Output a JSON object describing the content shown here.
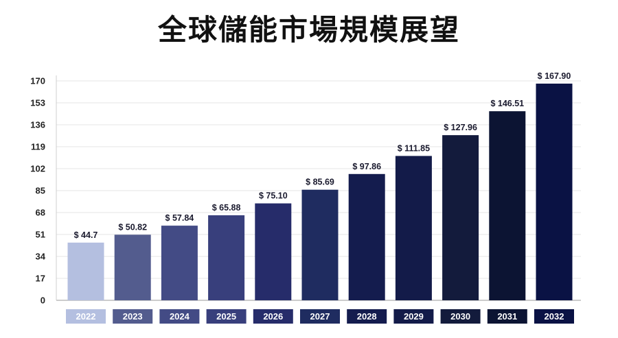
{
  "chart_data": {
    "type": "bar",
    "title": "全球儲能市場規模展望",
    "categories": [
      "2022",
      "2023",
      "2024",
      "2025",
      "2026",
      "2027",
      "2028",
      "2029",
      "2030",
      "2031",
      "2032"
    ],
    "values": [
      44.7,
      50.82,
      57.84,
      65.88,
      75.1,
      85.69,
      97.86,
      111.85,
      127.96,
      146.51,
      167.9
    ],
    "value_labels": [
      "$ 44.7",
      "$ 50.82",
      "$ 57.84",
      "$ 65.88",
      "$ 75.10",
      "$ 85.69",
      "$ 97.86",
      "$ 111.85",
      "$ 127.96",
      "$ 146.51",
      "$ 167.90"
    ],
    "yticks": [
      0,
      17,
      34,
      51,
      68,
      85,
      102,
      119,
      136,
      153,
      170
    ],
    "ylim": [
      0,
      170
    ],
    "xlabel": "",
    "ylabel": "",
    "grid": true,
    "bar_colors": [
      "#b4bfe0",
      "#535c8e",
      "#434b85",
      "#383f7c",
      "#262c6a",
      "#1f2c60",
      "#141c4e",
      "#131b49",
      "#131b3c",
      "#0c1433",
      "#0a1244"
    ]
  }
}
